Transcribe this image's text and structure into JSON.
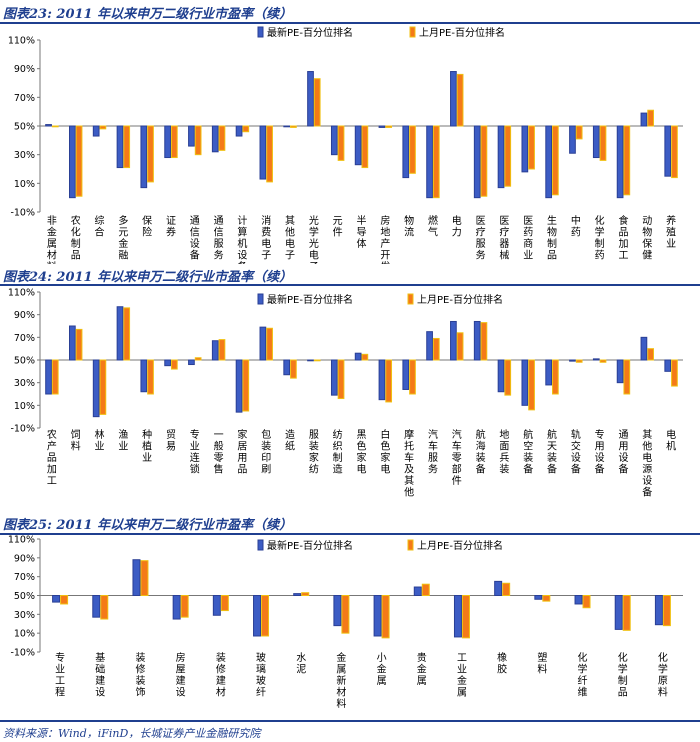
{
  "colors": {
    "latest": "#3c5cc4",
    "latest_edge": "#2a3f95",
    "last": "#f47a18",
    "last_edge": "#f0c010",
    "title": "#1f3f8f",
    "axis": "#777777",
    "tick_text": "#000000"
  },
  "source": "资料来源：Wind，iFinD，长城证券产业金融研究院",
  "chart_data": [
    {
      "type": "bar",
      "title": "图表23:  2011 年以来申万二级行业市盈率（续）",
      "legend": [
        "最新PE-百分位排名",
        "上月PE-百分位排名"
      ],
      "yticks": [
        "110%",
        "90%",
        "70%",
        "50%",
        "30%",
        "10%",
        "-10%"
      ],
      "ylim": [
        -10,
        110
      ],
      "baseline": 50,
      "categories": [
        "非金属材料",
        "农化制品",
        "综合",
        "多元金融",
        "保险",
        "证券",
        "通信设备",
        "通信服务",
        "计算机设备",
        "消费电子",
        "其他电子",
        "光学光电子",
        "元件",
        "半导体",
        "房地产开发",
        "物流",
        "燃气",
        "电力",
        "医疗服务",
        "医疗器械",
        "医药商业",
        "生物制品",
        "中药",
        "化学制药",
        "食品加工",
        "动物保健",
        "养殖业"
      ],
      "series": [
        {
          "name": "最新PE-百分位排名",
          "values": [
            51,
            0,
            43,
            21,
            7,
            28,
            36,
            32,
            43,
            13,
            50,
            88,
            30,
            23,
            49,
            14,
            0,
            88,
            0,
            7,
            18,
            0,
            31,
            28,
            0,
            59,
            15
          ]
        },
        {
          "name": "上月PE-百分位排名",
          "values": [
            50,
            1,
            48,
            21,
            11,
            28,
            30,
            33,
            46,
            11,
            49,
            83,
            26,
            21,
            49,
            17,
            0,
            86,
            1,
            8,
            20,
            2,
            41,
            26,
            2,
            61,
            14
          ]
        }
      ]
    },
    {
      "type": "bar",
      "title": "图表24:  2011 年以来申万二级行业市盈率（续）",
      "legend": [
        "最新PE-百分位排名",
        "上月PE-百分位排名"
      ],
      "yticks": [
        "110%",
        "90%",
        "70%",
        "50%",
        "30%",
        "10%",
        "-10%"
      ],
      "ylim": [
        -10,
        110
      ],
      "baseline": 50,
      "categories": [
        "农产品加工",
        "饲料",
        "林业",
        "渔业",
        "种植业",
        "贸易",
        "专业连锁",
        "一般零售",
        "家居用品",
        "包装印刷",
        "造纸",
        "服装家纺",
        "纺织制造",
        "黑色家电",
        "白色家电",
        "摩托车及其他",
        "汽车服务",
        "汽车零部件",
        "航海装备",
        "地面兵装",
        "航空装备",
        "航天装备",
        "轨交设备",
        "专用设备",
        "通用设备",
        "其他电源设备",
        "电机"
      ],
      "series": [
        {
          "name": "最新PE-百分位排名",
          "values": [
            20,
            80,
            0,
            97,
            22,
            45,
            46,
            67,
            4,
            79,
            37,
            50,
            19,
            56,
            15,
            24,
            75,
            84,
            84,
            22,
            10,
            28,
            49,
            51,
            30,
            70,
            40
          ]
        },
        {
          "name": "上月PE-百分位排名",
          "values": [
            20,
            77,
            2,
            96,
            20,
            42,
            52,
            68,
            5,
            78,
            34,
            50,
            16,
            55,
            13,
            20,
            69,
            74,
            83,
            19,
            6,
            20,
            48,
            48,
            20,
            60,
            27
          ]
        }
      ]
    },
    {
      "type": "bar",
      "title": "图表25:  2011 年以来申万二级行业市盈率（续）",
      "legend": [
        "最新PE-百分位排名",
        "上月PE-百分位排名"
      ],
      "yticks": [
        "110%",
        "90%",
        "70%",
        "50%",
        "30%",
        "10%",
        "-10%"
      ],
      "ylim": [
        -10,
        110
      ],
      "baseline": 50,
      "categories": [
        "专业工程",
        "基础建设",
        "装修装饰",
        "房屋建设",
        "装修建材",
        "玻璃玻纤",
        "水泥",
        "金属新材料",
        "小金属",
        "贵金属",
        "工业金属",
        "橡胶",
        "塑料",
        "化学纤维",
        "化学制品",
        "化学原料"
      ],
      "series": [
        {
          "name": "最新PE-百分位排名",
          "values": [
            43,
            27,
            88,
            25,
            29,
            7,
            52,
            18,
            7,
            59,
            6,
            65,
            46,
            41,
            14,
            19
          ]
        },
        {
          "name": "上月PE-百分位排名",
          "values": [
            41,
            25,
            87,
            27,
            34,
            7,
            53,
            10,
            5,
            62,
            5,
            63,
            44,
            37,
            13,
            18
          ]
        }
      ]
    }
  ]
}
